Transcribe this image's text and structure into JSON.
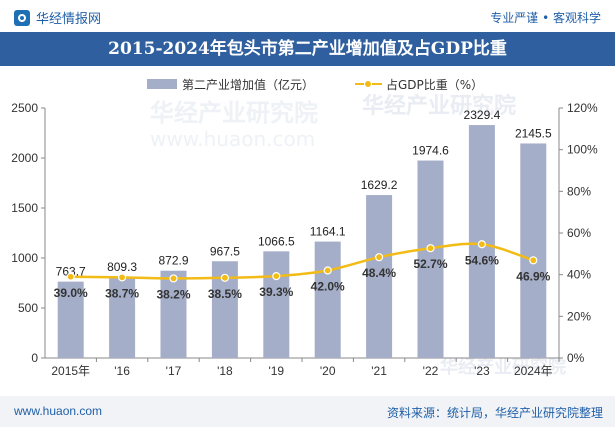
{
  "header": {
    "brand": "华经情报网",
    "slogan": "专业严谨 • 客观科学"
  },
  "watermarks": [
    "华经产业研究院",
    "www.huaon.com"
  ],
  "footer": {
    "website": "www.huaon.com",
    "source": "资料来源：统计局，华经产业研究院整理"
  },
  "colors": {
    "bar": "#a5aec8",
    "line": "#f2bb16",
    "title_band": "#2f5f9e",
    "brand_blue": "#1f5fa8"
  },
  "chart_data": {
    "type": "bar",
    "title": "2015-2024年包头市第二产业增加值及占GDP比重",
    "categories": [
      "2015年",
      "'16",
      "'17",
      "'18",
      "'19",
      "'20",
      "'21",
      "'22",
      "'23",
      "2024年"
    ],
    "series": [
      {
        "name": "第二产业增加值（亿元）",
        "type": "bar",
        "axis": "left",
        "values": [
          763.7,
          809.3,
          872.9,
          967.5,
          1066.5,
          1164.1,
          1629.2,
          1974.6,
          2329.4,
          2145.5
        ],
        "labels": [
          "763.7",
          "809.3",
          "872.9",
          "967.5",
          "1066.5",
          "1164.1",
          "1629.2",
          "1974.6",
          "2329.4",
          "2145.5"
        ]
      },
      {
        "name": "占GDP比重（%）",
        "type": "line",
        "axis": "right",
        "values": [
          39.0,
          38.7,
          38.2,
          38.5,
          39.3,
          42.0,
          48.4,
          52.7,
          54.6,
          46.9
        ],
        "labels": [
          "39.0%",
          "38.7%",
          "38.2%",
          "38.5%",
          "39.3%",
          "42.0%",
          "48.4%",
          "52.7%",
          "54.6%",
          "46.9%"
        ]
      }
    ],
    "y_left": {
      "min": 0,
      "max": 2500,
      "ticks": [
        "0",
        "500",
        "1000",
        "1500",
        "2000",
        "2500"
      ]
    },
    "y_right": {
      "min": 0,
      "max": 120,
      "ticks": [
        "0%",
        "20%",
        "40%",
        "60%",
        "80%",
        "100%",
        "120%"
      ]
    },
    "legend_position": "top-center",
    "grid": false
  }
}
